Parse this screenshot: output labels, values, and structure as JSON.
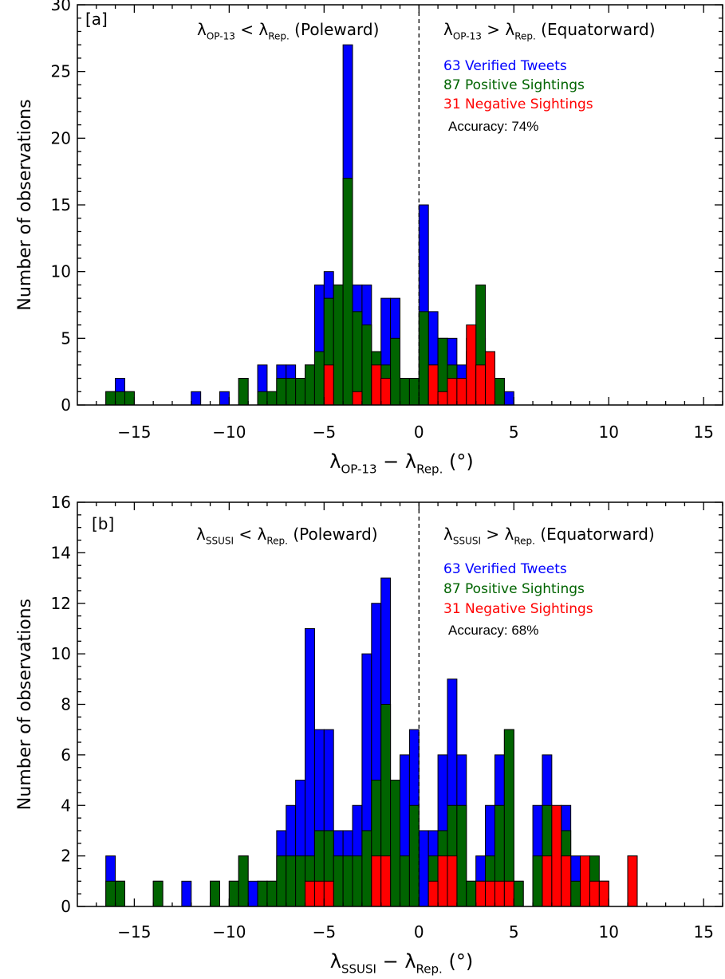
{
  "colors": {
    "verified": "#0000ff",
    "positive": "#006400",
    "negative": "#ff0000"
  },
  "chart_data": [
    {
      "type": "bar",
      "panel_label": "[a]",
      "bin_width": 0.5,
      "xlim": [
        -18,
        16
      ],
      "ylim": [
        0,
        30
      ],
      "xticks": [
        -15,
        -10,
        -5,
        0,
        5,
        10,
        15
      ],
      "xtick_labels": [
        "−15",
        "−10",
        "−5",
        "0",
        "5",
        "10",
        "15"
      ],
      "yticks": [
        0,
        5,
        10,
        15,
        20,
        25,
        30
      ],
      "ytick_labels": [
        "0",
        "5",
        "10",
        "15",
        "20",
        "25",
        "30"
      ],
      "ylabel": "Number of observations",
      "xlabel": {
        "lam1": "λ",
        "sub1": "OP-13",
        "op": " − ",
        "lam2": "λ",
        "sub2": "Rep.",
        "unit": " (°)"
      },
      "left_annotation": {
        "lam1": "λ",
        "sub1": "OP-13",
        "op": " < ",
        "lam2": "λ",
        "sub2": "Rep.",
        "rest": " (Poleward)"
      },
      "right_annotation": {
        "lam1": "λ",
        "sub1": "OP-13",
        "op": " > ",
        "lam2": "λ",
        "sub2": "Rep.",
        "rest": " (Equatorward)"
      },
      "legend": [
        {
          "label": "63 Verified Tweets",
          "color_key": "verified"
        },
        {
          "label": "87 Positive Sightings",
          "color_key": "positive"
        },
        {
          "label": "31 Negative Sightings",
          "color_key": "negative"
        }
      ],
      "accuracy_label": "Accuracy: 74%",
      "bin_starts": [
        -16.5,
        -16,
        -15.5,
        -12,
        -10.5,
        -9.5,
        -8.5,
        -8,
        -7.5,
        -7,
        -6.5,
        -6,
        -5.5,
        -5,
        -4.5,
        -4,
        -3.5,
        -3,
        -2.5,
        -2,
        -1.5,
        -1,
        -0.5,
        0,
        0.5,
        1,
        1.5,
        2,
        2.5,
        3,
        3.5,
        4,
        4.5
      ],
      "series": [
        {
          "name": "Verified Tweets",
          "color_key": "verified",
          "values": [
            1,
            2,
            1,
            1,
            1,
            2,
            3,
            1,
            3,
            3,
            2,
            3,
            9,
            10,
            9,
            27,
            9,
            9,
            4,
            8,
            8,
            2,
            2,
            15,
            7,
            5,
            5,
            3,
            5,
            5,
            3,
            2,
            1
          ]
        },
        {
          "name": "Positive Sightings",
          "color_key": "positive",
          "values": [
            1,
            1,
            1,
            0,
            0,
            2,
            1,
            1,
            2,
            2,
            2,
            3,
            4,
            8,
            9,
            17,
            7,
            6,
            4,
            3,
            5,
            2,
            2,
            7,
            3,
            5,
            3,
            2,
            4,
            9,
            4,
            2,
            0
          ]
        },
        {
          "name": "Negative Sightings",
          "color_key": "negative",
          "values": [
            0,
            0,
            0,
            0,
            0,
            0,
            0,
            0,
            0,
            0,
            0,
            0,
            0,
            3,
            0,
            0,
            1,
            0,
            3,
            2,
            0,
            0,
            0,
            0,
            3,
            1,
            2,
            2,
            6,
            3,
            4,
            0,
            0
          ]
        }
      ]
    },
    {
      "type": "bar",
      "panel_label": "[b]",
      "bin_width": 0.5,
      "xlim": [
        -18,
        16
      ],
      "ylim": [
        0,
        16
      ],
      "xticks": [
        -15,
        -10,
        -5,
        0,
        5,
        10,
        15
      ],
      "xtick_labels": [
        "−15",
        "−10",
        "−5",
        "0",
        "5",
        "10",
        "15"
      ],
      "yticks": [
        0,
        2,
        4,
        6,
        8,
        10,
        12,
        14,
        16
      ],
      "ytick_labels": [
        "0",
        "2",
        "4",
        "6",
        "8",
        "10",
        "12",
        "14",
        "16"
      ],
      "ylabel": "Number of observations",
      "xlabel": {
        "lam1": "λ",
        "sub1": "SSUSI",
        "op": " − ",
        "lam2": "λ",
        "sub2": "Rep.",
        "unit": " (°)"
      },
      "left_annotation": {
        "lam1": "λ",
        "sub1": "SSUSI",
        "op": " < ",
        "lam2": "λ",
        "sub2": "Rep.",
        "rest": " (Poleward)"
      },
      "right_annotation": {
        "lam1": "λ",
        "sub1": "SSUSI",
        "op": " > ",
        "lam2": "λ",
        "sub2": "Rep.",
        "rest": " (Equatorward)"
      },
      "legend": [
        {
          "label": "63 Verified Tweets",
          "color_key": "verified"
        },
        {
          "label": "87 Positive Sightings",
          "color_key": "positive"
        },
        {
          "label": "31 Negative Sightings",
          "color_key": "negative"
        }
      ],
      "accuracy_label": "Accuracy: 68%",
      "bin_starts": [
        -16.5,
        -16,
        -14,
        -12.5,
        -11,
        -10,
        -9.5,
        -9,
        -8.5,
        -8,
        -7.5,
        -7,
        -6.5,
        -6,
        -5.5,
        -5,
        -4.5,
        -4,
        -3.5,
        -3,
        -2.5,
        -2,
        -1.5,
        -1,
        -0.5,
        0,
        0.5,
        1,
        1.5,
        2,
        2.5,
        3,
        3.5,
        4,
        4.5,
        5,
        6,
        6.5,
        7,
        7.5,
        8,
        8.5,
        9,
        9.5,
        11
      ],
      "series": [
        {
          "name": "Verified Tweets",
          "color_key": "verified",
          "values": [
            2,
            1,
            1,
            1,
            1,
            1,
            2,
            1,
            1,
            1,
            3,
            4,
            5,
            11,
            7,
            7,
            3,
            3,
            4,
            10,
            12,
            13,
            4,
            6,
            7,
            3,
            3,
            6,
            9,
            6,
            1,
            2,
            4,
            6,
            7,
            1,
            4,
            6,
            2,
            4,
            2,
            1,
            1,
            1,
            2
          ]
        },
        {
          "name": "Positive Sightings",
          "color_key": "positive",
          "values": [
            1,
            1,
            1,
            0,
            1,
            1,
            2,
            0,
            1,
            1,
            2,
            2,
            2,
            2,
            3,
            3,
            2,
            2,
            2,
            3,
            5,
            8,
            5,
            2,
            4,
            0,
            2,
            3,
            4,
            4,
            1,
            1,
            2,
            4,
            7,
            1,
            2,
            4,
            2,
            3,
            1,
            1,
            2,
            1,
            0
          ]
        },
        {
          "name": "Negative Sightings",
          "color_key": "negative",
          "values": [
            0,
            0,
            0,
            0,
            0,
            0,
            0,
            0,
            0,
            0,
            0,
            0,
            0,
            1,
            1,
            1,
            0,
            0,
            0,
            0,
            2,
            2,
            0,
            0,
            0,
            0,
            1,
            2,
            2,
            0,
            0,
            1,
            1,
            1,
            1,
            0,
            0,
            2,
            4,
            2,
            0,
            2,
            1,
            1,
            2
          ]
        }
      ]
    }
  ]
}
